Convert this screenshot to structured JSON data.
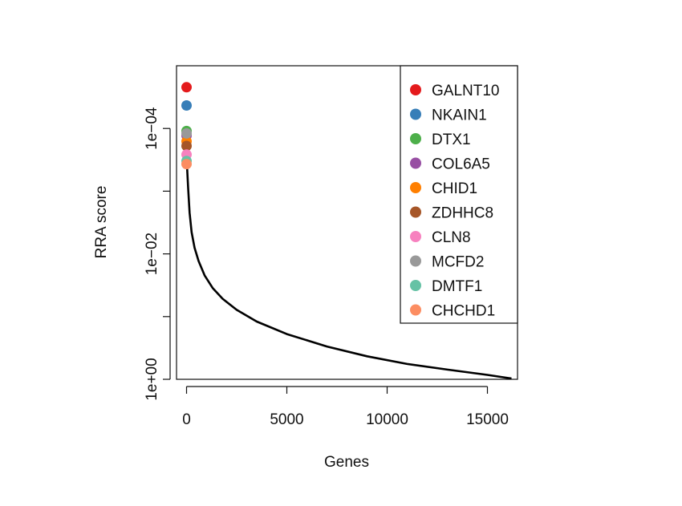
{
  "chart_data": {
    "type": "line",
    "xlabel": "Genes",
    "ylabel": "RRA score",
    "y_scale": "log-reversed",
    "xlim": [
      -500,
      16500
    ],
    "ylim": [
      1,
      1e-05
    ],
    "x_ticks": [
      0,
      5000,
      10000,
      15000
    ],
    "x_tick_labels": [
      "0",
      "5000",
      "10000",
      "15000"
    ],
    "y_ticks": [
      1,
      0.1,
      0.01,
      0.001,
      0.0001
    ],
    "y_tick_labels": [
      "1e+00",
      "",
      "1e−02",
      "",
      "1e−04"
    ],
    "legend_position": "top-right",
    "curve": {
      "x": [
        0,
        30,
        80,
        150,
        250,
        400,
        600,
        900,
        1300,
        1800,
        2500,
        3500,
        5000,
        7000,
        9000,
        11000,
        13000,
        15000,
        16200
      ],
      "y": [
        0.00025,
        0.00045,
        0.0009,
        0.0022,
        0.0045,
        0.008,
        0.013,
        0.022,
        0.035,
        0.052,
        0.078,
        0.12,
        0.19,
        0.3,
        0.43,
        0.57,
        0.7,
        0.85,
        0.97
      ]
    },
    "highlighted": [
      {
        "name": "GALNT10",
        "x": 0,
        "y": 2.2e-05,
        "color": "#e41a1c"
      },
      {
        "name": "NKAIN1",
        "x": 0,
        "y": 4.3e-05,
        "color": "#377eb8"
      },
      {
        "name": "DTX1",
        "x": 0,
        "y": 0.00011,
        "color": "#4daf4a"
      },
      {
        "name": "COL6A5",
        "x": 0,
        "y": 0.00013,
        "color": "#984ea3"
      },
      {
        "name": "CHID1",
        "x": 0,
        "y": 0.00016,
        "color": "#ff7f00"
      },
      {
        "name": "ZDHHC8",
        "x": 0,
        "y": 0.00019,
        "color": "#a65628"
      },
      {
        "name": "CLN8",
        "x": 0,
        "y": 0.00026,
        "color": "#f781bf"
      },
      {
        "name": "MCFD2",
        "x": 0,
        "y": 0.00012,
        "color": "#999999"
      },
      {
        "name": "DMTF1",
        "x": 0,
        "y": 0.00033,
        "color": "#66c2a5"
      },
      {
        "name": "CHCHD1",
        "x": 0,
        "y": 0.00037,
        "color": "#fc8d62"
      }
    ]
  }
}
